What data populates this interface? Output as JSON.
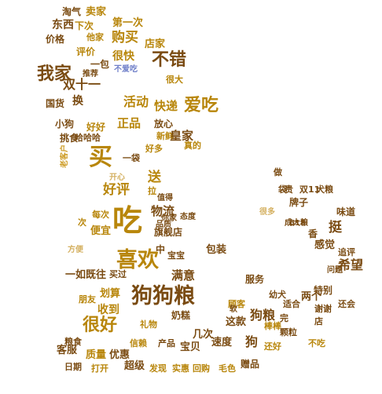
{
  "colors": {
    "dark_gold": "#b8860b",
    "gold": "#cc9a22",
    "brown": "#7a4b12",
    "light": "#d4b060",
    "pale": "#e3c98a",
    "blue": "#6f7fc9"
  },
  "words": [
    {
      "text": "淘气"
    },
    {
      "text": "卖家"
    },
    {
      "text": "东西"
    },
    {
      "text": "下次"
    },
    {
      "text": "第一次"
    },
    {
      "text": "价格"
    },
    {
      "text": "他家"
    },
    {
      "text": "购买"
    },
    {
      "text": "店家"
    },
    {
      "text": "评价"
    },
    {
      "text": "很快"
    },
    {
      "text": "不错"
    },
    {
      "text": "一包"
    },
    {
      "text": "我家"
    },
    {
      "text": "双十一"
    },
    {
      "text": "不爱吃"
    },
    {
      "text": "推荐"
    },
    {
      "text": "很大"
    },
    {
      "text": "国货"
    },
    {
      "text": "换"
    },
    {
      "text": "活动"
    },
    {
      "text": "快递"
    },
    {
      "text": "爱吃"
    },
    {
      "text": "小狗"
    },
    {
      "text": "好好"
    },
    {
      "text": "正品"
    },
    {
      "text": "放心"
    },
    {
      "text": "挑食"
    },
    {
      "text": "哈哈哈"
    },
    {
      "text": "好多"
    },
    {
      "text": "新鲜"
    },
    {
      "text": "皇家"
    },
    {
      "text": "真的"
    },
    {
      "text": "买"
    },
    {
      "text": "老客户"
    },
    {
      "text": "一袋"
    },
    {
      "text": "好评"
    },
    {
      "text": "送"
    },
    {
      "text": "物流"
    },
    {
      "text": "旗舰店"
    },
    {
      "text": "挺"
    },
    {
      "text": "味道"
    },
    {
      "text": "吃"
    },
    {
      "text": "喜欢"
    },
    {
      "text": "中"
    },
    {
      "text": "宝宝"
    },
    {
      "text": "满意"
    },
    {
      "text": "包装"
    },
    {
      "text": "希望"
    },
    {
      "text": "一如既往"
    },
    {
      "text": "收到"
    },
    {
      "text": "服务"
    },
    {
      "text": "狗狗粮"
    },
    {
      "text": "很好"
    },
    {
      "text": "奶糕"
    },
    {
      "text": "狗粮"
    },
    {
      "text": "客服"
    },
    {
      "text": "质量"
    },
    {
      "text": "优惠"
    },
    {
      "text": "超级"
    },
    {
      "text": "宝贝"
    },
    {
      "text": "速度"
    },
    {
      "text": "回购"
    },
    {
      "text": "日期"
    },
    {
      "text": "打开"
    },
    {
      "text": "发现"
    },
    {
      "text": "实惠"
    },
    {
      "text": "毛色"
    },
    {
      "text": "赠品"
    },
    {
      "text": "还好"
    },
    {
      "text": "颗粒"
    },
    {
      "text": "不吃"
    },
    {
      "text": "两个"
    },
    {
      "text": "谢谢"
    },
    {
      "text": "还会"
    },
    {
      "text": "特别"
    },
    {
      "text": "便宜"
    },
    {
      "text": "品质"
    },
    {
      "text": "值得"
    },
    {
      "text": "这款"
    },
    {
      "text": "感觉"
    },
    {
      "text": "划算"
    },
    {
      "text": "袋"
    },
    {
      "text": "贵"
    },
    {
      "text": "双11"
    },
    {
      "text": "牌子"
    },
    {
      "text": "香"
    },
    {
      "text": "追评"
    },
    {
      "text": "每次"
    },
    {
      "text": "次"
    },
    {
      "text": "618"
    },
    {
      "text": "朋友"
    },
    {
      "text": "粮食"
    },
    {
      "text": "礼物"
    },
    {
      "text": "信赖"
    },
    {
      "text": "产品"
    },
    {
      "text": "几次"
    },
    {
      "text": "顾客"
    },
    {
      "text": "棒棒"
    },
    {
      "text": "问题"
    },
    {
      "text": "狗"
    },
    {
      "text": "你家"
    },
    {
      "text": "态度"
    },
    {
      "text": "买过"
    },
    {
      "text": "开心"
    },
    {
      "text": "很多"
    },
    {
      "text": "方便"
    },
    {
      "text": "成大粮"
    },
    {
      "text": "软"
    },
    {
      "text": "完"
    },
    {
      "text": "适合"
    },
    {
      "text": "做"
    },
    {
      "text": "拉"
    },
    {
      "text": "幼犬"
    },
    {
      "text": "店"
    },
    {
      "text": "犬粮"
    }
  ]
}
